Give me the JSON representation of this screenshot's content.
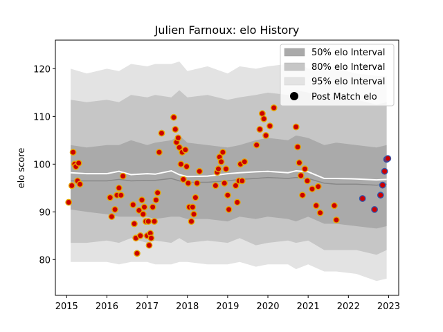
{
  "chart_data": {
    "type": "scatter",
    "title": "Julien Farnoux: elo History",
    "xlabel": "",
    "ylabel": "elo score",
    "xlim": [
      2014.72,
      2023.25
    ],
    "ylim": [
      72.5,
      126.0
    ],
    "x_ticks": [
      2015,
      2016,
      2017,
      2018,
      2019,
      2020,
      2021,
      2022,
      2023
    ],
    "x_tick_labels": [
      "2015",
      "2016",
      "2017",
      "2018",
      "2019",
      "2020",
      "2021",
      "2022",
      "2023"
    ],
    "y_ticks": [
      80,
      90,
      100,
      110,
      120
    ],
    "y_tick_labels": [
      "80",
      "90",
      "100",
      "110",
      "120"
    ],
    "grid": false,
    "legend_position": "upper right",
    "legend": {
      "band50": "50% elo Interval",
      "band80": "80% elo Interval",
      "band95": "95% elo Interval",
      "points": "Post Match elo"
    },
    "colors": {
      "band50": "#aaaaaa",
      "band80": "#c6c6c6",
      "band95": "#e3e3e3",
      "median_line": "#888888",
      "mean_line": "#ffffff",
      "point_fill_old": "#cc0000",
      "point_edge_old": "#e6a800",
      "point_fill_recent": "#cc0000",
      "point_edge_recent": "#3355aa"
    },
    "series": [
      {
        "type": "band",
        "x": [
          2015.1,
          2015.5,
          2016.0,
          2016.3,
          2016.6,
          2017.0,
          2017.2,
          2017.6,
          2017.8,
          2018.0,
          2018.5,
          2019.0,
          2019.3,
          2019.7,
          2020.0,
          2020.5,
          2020.7,
          2021.0,
          2021.4,
          2021.7,
          2022.2,
          2022.7,
          2022.95
        ],
        "low95": [
          79.5,
          79.5,
          79.5,
          79.0,
          79.5,
          79.5,
          79.0,
          79.0,
          79.5,
          79.5,
          79.0,
          79.0,
          79.5,
          78.5,
          79.0,
          79.0,
          78.0,
          79.0,
          77.5,
          77.5,
          77.0,
          75.5,
          76.0
        ],
        "high95": [
          120.0,
          119.0,
          120.0,
          119.5,
          121.0,
          120.5,
          121.0,
          121.0,
          121.5,
          119.5,
          120.5,
          119.0,
          120.5,
          120.0,
          120.5,
          121.0,
          121.5,
          120.0,
          120.0,
          120.0,
          119.0,
          118.5,
          118.5
        ],
        "low80": [
          83.5,
          83.5,
          84.0,
          83.5,
          84.5,
          83.5,
          84.0,
          83.5,
          84.5,
          83.5,
          84.0,
          83.5,
          84.5,
          83.0,
          83.5,
          84.0,
          83.5,
          84.0,
          82.0,
          82.0,
          82.0,
          81.0,
          82.0
        ],
        "high80": [
          113.5,
          113.0,
          113.5,
          113.0,
          114.5,
          114.0,
          114.5,
          114.0,
          115.5,
          114.0,
          114.5,
          113.5,
          114.0,
          114.5,
          115.0,
          114.5,
          115.5,
          115.0,
          114.0,
          114.0,
          113.5,
          112.5,
          113.0
        ],
        "low50": [
          90.5,
          90.0,
          89.5,
          89.0,
          89.0,
          89.0,
          88.5,
          89.0,
          89.0,
          88.5,
          88.5,
          88.0,
          89.0,
          88.5,
          89.0,
          88.5,
          88.0,
          89.0,
          87.5,
          87.5,
          87.0,
          86.5,
          87.0
        ],
        "high50": [
          104.0,
          103.5,
          104.0,
          104.0,
          105.0,
          104.0,
          104.5,
          105.0,
          106.0,
          104.5,
          104.0,
          103.5,
          104.0,
          105.0,
          105.5,
          105.0,
          106.0,
          105.5,
          104.0,
          104.5,
          104.0,
          103.5,
          104.0
        ],
        "median": [
          96.5,
          96.5,
          96.5,
          96.8,
          96.5,
          96.6,
          96.6,
          97.0,
          96.5,
          96.2,
          96.2,
          96.5,
          96.8,
          97.0,
          97.2,
          97.0,
          97.2,
          97.0,
          96.0,
          95.8,
          95.8,
          95.6,
          95.8
        ],
        "mean": [
          98.2,
          98.0,
          98.0,
          98.5,
          97.8,
          98.0,
          97.9,
          98.6,
          97.8,
          97.4,
          97.5,
          98.0,
          98.2,
          98.4,
          98.5,
          98.2,
          98.6,
          98.4,
          97.0,
          97.0,
          96.9,
          96.7,
          96.8
        ]
      },
      {
        "type": "scatter",
        "name": "Post Match elo",
        "x": [
          2015.05,
          2015.13,
          2015.16,
          2015.2,
          2015.23,
          2015.27,
          2015.3,
          2015.33,
          2016.08,
          2016.12,
          2016.2,
          2016.25,
          2016.3,
          2016.35,
          2016.4,
          2016.65,
          2016.68,
          2016.72,
          2016.75,
          2016.8,
          2016.83,
          2016.87,
          2016.9,
          2016.93,
          2016.97,
          2017.0,
          2017.03,
          2017.05,
          2017.08,
          2017.1,
          2017.14,
          2017.18,
          2017.22,
          2017.26,
          2017.3,
          2017.36,
          2017.66,
          2017.7,
          2017.73,
          2017.77,
          2017.8,
          2017.84,
          2017.87,
          2017.9,
          2017.95,
          2017.98,
          2018.02,
          2018.05,
          2018.1,
          2018.13,
          2018.16,
          2018.2,
          2018.24,
          2018.3,
          2018.7,
          2018.74,
          2018.77,
          2018.8,
          2018.84,
          2018.88,
          2018.92,
          2018.96,
          2019.0,
          2019.03,
          2019.2,
          2019.24,
          2019.28,
          2019.32,
          2019.36,
          2019.42,
          2019.72,
          2019.8,
          2019.86,
          2019.9,
          2019.95,
          2020.05,
          2020.15,
          2020.7,
          2020.74,
          2020.78,
          2020.82,
          2020.86,
          2020.92,
          2020.98,
          2021.1,
          2021.2,
          2021.25,
          2021.3,
          2021.65,
          2021.7,
          2022.35,
          2022.65,
          2022.8,
          2022.85,
          2022.9,
          2022.95,
          2022.98
        ],
        "y": [
          92.0,
          95.5,
          102.5,
          100.0,
          99.5,
          96.5,
          100.2,
          95.8,
          93.0,
          89.0,
          90.5,
          93.5,
          95.0,
          93.5,
          97.5,
          91.5,
          87.5,
          84.5,
          81.3,
          90.3,
          85.0,
          92.5,
          89.5,
          91.0,
          88.0,
          85.0,
          88.0,
          83.0,
          85.5,
          84.5,
          91.0,
          88.0,
          92.5,
          94.0,
          102.5,
          106.5,
          109.8,
          107.3,
          104.6,
          105.5,
          103.5,
          100.0,
          102.5,
          96.8,
          103.0,
          99.5,
          96.0,
          91.0,
          88.0,
          91.0,
          89.5,
          93.0,
          96.0,
          98.5,
          95.5,
          98.3,
          99.0,
          101.5,
          100.5,
          102.5,
          96.0,
          99.0,
          93.5,
          90.5,
          95.5,
          92.0,
          96.5,
          100.0,
          96.5,
          100.5,
          104.0,
          107.3,
          110.6,
          109.5,
          106.0,
          108.0,
          111.8,
          107.8,
          103.6,
          100.3,
          97.6,
          93.5,
          99.0,
          96.5,
          94.8,
          91.3,
          95.3,
          89.8,
          91.3,
          88.3,
          92.8,
          90.5,
          93.5,
          95.6,
          98.5,
          101.0,
          101.2
        ]
      }
    ]
  }
}
